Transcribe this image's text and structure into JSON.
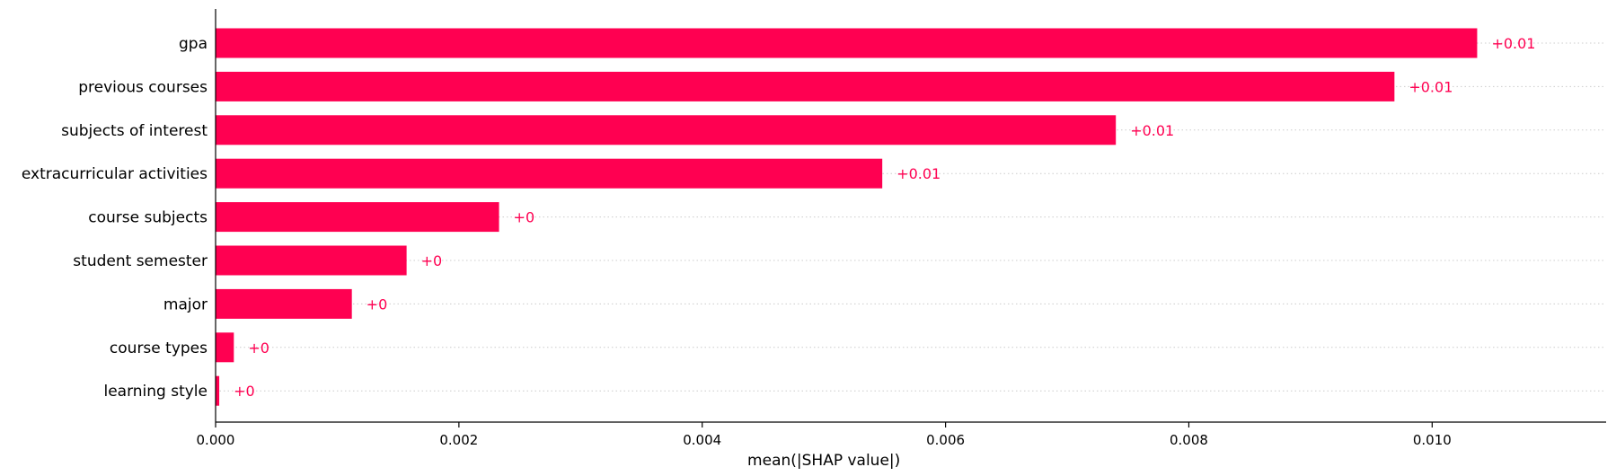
{
  "chart_data": {
    "type": "bar",
    "orientation": "horizontal",
    "categories": [
      "gpa",
      "previous courses",
      "subjects of interest",
      "extracurricular activities",
      "course subjects",
      "student semester",
      "major",
      "course types",
      "learning style"
    ],
    "values": [
      0.01037,
      0.00969,
      0.0074,
      0.00548,
      0.00233,
      0.00157,
      0.00112,
      0.00015,
      3e-05
    ],
    "value_labels": [
      "+0.01",
      "+0.01",
      "+0.01",
      "+0.01",
      "+0",
      "+0",
      "+0",
      "+0",
      "+0"
    ],
    "xlabel": "mean(|SHAP value|)",
    "ylabel": "",
    "title": "",
    "xlim": [
      0,
      0.01143
    ],
    "xticks": [
      0.0,
      0.002,
      0.004,
      0.006,
      0.008,
      0.01
    ],
    "xtick_labels": [
      "0.000",
      "0.002",
      "0.004",
      "0.006",
      "0.008",
      "0.010"
    ],
    "grid": "dotted horizontal row guides",
    "bar_color": "#ff0051",
    "label_color": "#ff0051",
    "guide_color": "#cccccc"
  }
}
